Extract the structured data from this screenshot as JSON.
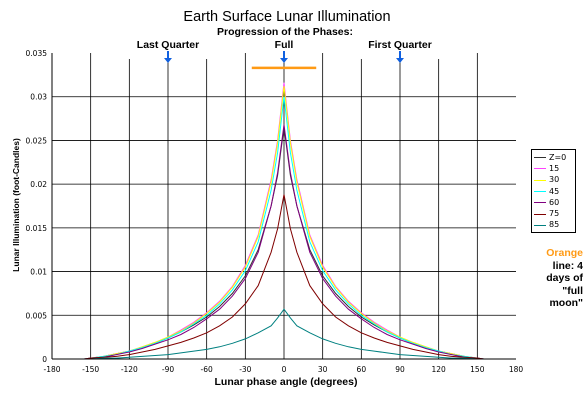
{
  "chart_data": {
    "type": "line",
    "title": "Earth Surface Lunar Illumination",
    "subtitle": "Progression of the Phases:",
    "xlabel": "Lunar phase angle (degrees)",
    "ylabel": "Lunar Illumination (foot-Candles)",
    "xlim": [
      -180,
      180
    ],
    "ylim": [
      0,
      0.035
    ],
    "x_ticks": [
      "-180",
      "-150",
      "-120",
      "-90",
      "-60",
      "-30",
      "0",
      "30",
      "60",
      "90",
      "120",
      "150",
      "180"
    ],
    "y_ticks": [
      "0",
      "0.005",
      "0.01",
      "0.015",
      "0.02",
      "0.025",
      "0.03",
      "0.035"
    ],
    "grid": true,
    "legend_position": "right",
    "phase_markers": [
      {
        "label": "Last Quarter",
        "x": -90,
        "color": "#1060e0"
      },
      {
        "label": "Full",
        "x": 0,
        "color": "#1060e0"
      },
      {
        "label": "First Quarter",
        "x": 90,
        "color": "#1060e0"
      }
    ],
    "full_moon_band": {
      "x_start": -25,
      "x_end": 25,
      "y": 0.0333,
      "color": "#ff9a14"
    },
    "x": [
      -155,
      -150,
      -140,
      -130,
      -120,
      -110,
      -100,
      -90,
      -80,
      -70,
      -60,
      -50,
      -40,
      -30,
      -20,
      -10,
      -5,
      0,
      5,
      10,
      20,
      30,
      40,
      50,
      60,
      70,
      80,
      90,
      100,
      110,
      120,
      130,
      140,
      150,
      155
    ],
    "series": [
      {
        "name": "Z=0",
        "color": "#303030",
        "values": [
          0,
          0.0001,
          0.0003,
          0.0006,
          0.0009,
          0.0013,
          0.0018,
          0.0024,
          0.0031,
          0.0039,
          0.0048,
          0.006,
          0.0075,
          0.0095,
          0.0125,
          0.0175,
          0.021,
          0.0265,
          0.021,
          0.0175,
          0.0125,
          0.0095,
          0.0075,
          0.006,
          0.0048,
          0.0039,
          0.0031,
          0.0024,
          0.0018,
          0.0013,
          0.0009,
          0.0006,
          0.0003,
          0.0001,
          0
        ]
      },
      {
        "name": "15",
        "color": "#ff40ff",
        "values": [
          0,
          0.0001,
          0.0003,
          0.0006,
          0.0009,
          0.0014,
          0.0019,
          0.0025,
          0.0033,
          0.0042,
          0.0053,
          0.0066,
          0.0083,
          0.0107,
          0.0142,
          0.0205,
          0.025,
          0.0316,
          0.025,
          0.0205,
          0.0142,
          0.0107,
          0.0083,
          0.0066,
          0.0053,
          0.0042,
          0.0033,
          0.0025,
          0.0019,
          0.0014,
          0.0009,
          0.0006,
          0.0003,
          0.0001,
          0
        ]
      },
      {
        "name": "30",
        "color": "#ffff00",
        "values": [
          0,
          0.0001,
          0.0003,
          0.0006,
          0.0009,
          0.0014,
          0.0019,
          0.0025,
          0.0032,
          0.0041,
          0.0052,
          0.0065,
          0.0082,
          0.0105,
          0.014,
          0.0202,
          0.0247,
          0.0312,
          0.0247,
          0.0202,
          0.014,
          0.0105,
          0.0082,
          0.0065,
          0.0052,
          0.0041,
          0.0032,
          0.0025,
          0.0019,
          0.0014,
          0.0009,
          0.0006,
          0.0003,
          0.0001,
          0
        ]
      },
      {
        "name": "45",
        "color": "#00ffff",
        "values": [
          0,
          0.0001,
          0.0003,
          0.0005,
          0.0009,
          0.0013,
          0.0018,
          0.0024,
          0.0031,
          0.004,
          0.005,
          0.0063,
          0.0079,
          0.0101,
          0.0134,
          0.0193,
          0.0236,
          0.03,
          0.0236,
          0.0193,
          0.0134,
          0.0101,
          0.0079,
          0.0063,
          0.005,
          0.004,
          0.0031,
          0.0024,
          0.0018,
          0.0013,
          0.0009,
          0.0005,
          0.0003,
          0.0001,
          0
        ]
      },
      {
        "name": "60",
        "color": "#800080",
        "values": [
          0,
          0.0001,
          0.0002,
          0.0005,
          0.0008,
          0.0012,
          0.0017,
          0.0022,
          0.0028,
          0.0036,
          0.0046,
          0.0057,
          0.0072,
          0.0092,
          0.0122,
          0.0175,
          0.0213,
          0.0268,
          0.0213,
          0.0175,
          0.0122,
          0.0092,
          0.0072,
          0.0057,
          0.0046,
          0.0036,
          0.0028,
          0.0022,
          0.0017,
          0.0012,
          0.0008,
          0.0005,
          0.0002,
          0.0001,
          0
        ]
      },
      {
        "name": "75",
        "color": "#800000",
        "values": [
          0,
          0.0001,
          0.0002,
          0.0003,
          0.0005,
          0.0008,
          0.0011,
          0.0015,
          0.0019,
          0.0024,
          0.003,
          0.0038,
          0.0048,
          0.0063,
          0.0084,
          0.0122,
          0.0149,
          0.0188,
          0.0149,
          0.0122,
          0.0084,
          0.0063,
          0.0048,
          0.0038,
          0.003,
          0.0024,
          0.0019,
          0.0015,
          0.0011,
          0.0008,
          0.0005,
          0.0003,
          0.0002,
          0.0001,
          0
        ]
      },
      {
        "name": "85",
        "color": "#008080",
        "values": [
          0,
          0,
          0.0001,
          0.0001,
          0.0002,
          0.0003,
          0.0004,
          0.0005,
          0.0007,
          0.0009,
          0.0011,
          0.0014,
          0.0018,
          0.0023,
          0.003,
          0.0038,
          0.0047,
          0.0057,
          0.0047,
          0.0038,
          0.003,
          0.0023,
          0.0018,
          0.0014,
          0.0011,
          0.0009,
          0.0007,
          0.0005,
          0.0004,
          0.0003,
          0.0002,
          0.0001,
          0.0001,
          0,
          0
        ]
      }
    ],
    "side_note": {
      "highlight": "Orange",
      "text": "line: 4 days of \"full moon\""
    }
  }
}
